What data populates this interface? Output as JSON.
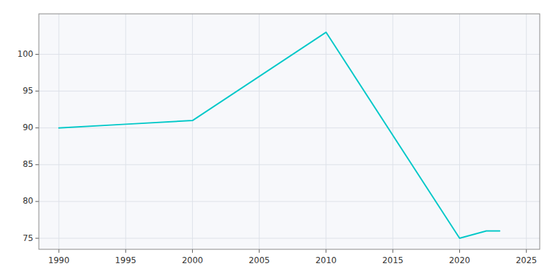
{
  "chart_data": {
    "type": "line",
    "x": [
      1990,
      1995,
      2000,
      2010,
      2020,
      2022,
      2023
    ],
    "values": [
      90,
      90.5,
      91,
      103,
      75,
      76,
      76
    ],
    "color": "#00c8c8",
    "xlim": [
      1988.5,
      2026
    ],
    "ylim": [
      73.5,
      105.5
    ],
    "xticks": [
      1990,
      1995,
      2000,
      2005,
      2010,
      2015,
      2020,
      2025
    ],
    "yticks": [
      75,
      80,
      85,
      90,
      95,
      100
    ],
    "grid": true
  }
}
